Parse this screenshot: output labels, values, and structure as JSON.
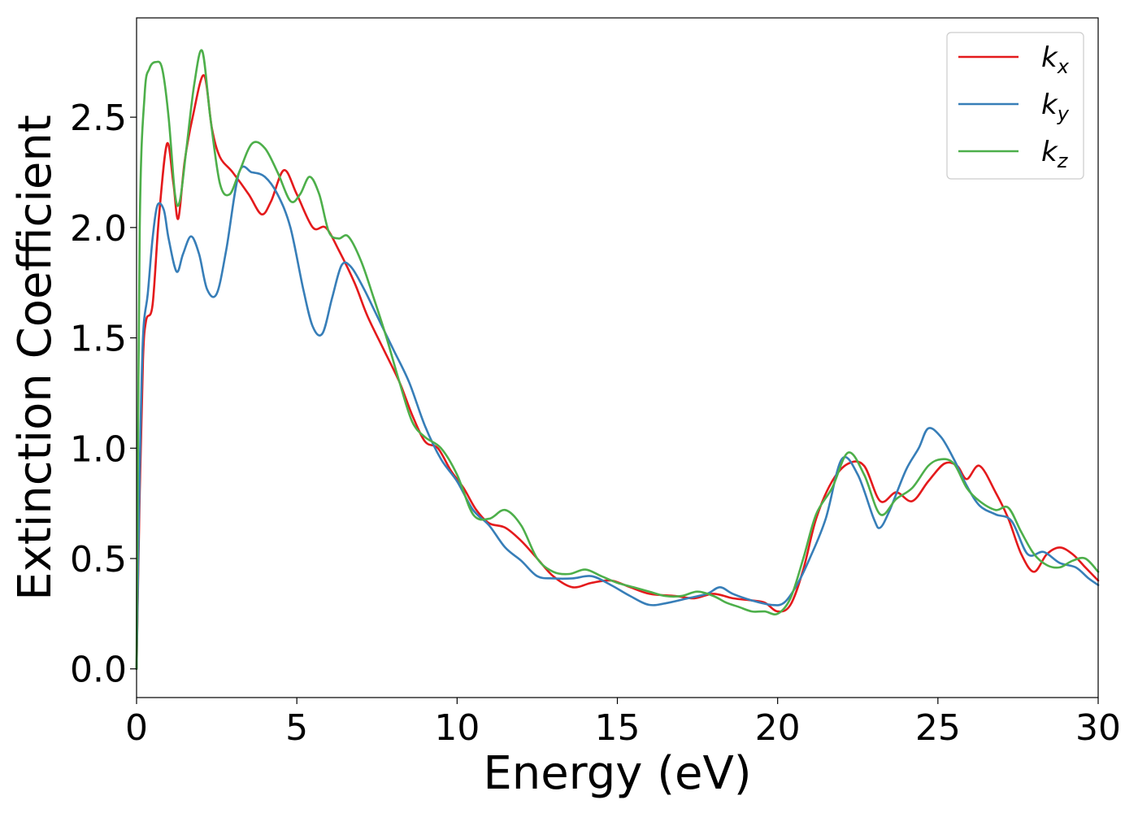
{
  "chart_data": {
    "type": "line",
    "xlabel": "Energy (eV)",
    "ylabel": "Extinction Coefficient",
    "xlim": [
      0,
      30
    ],
    "ylim": [
      -0.13,
      2.95
    ],
    "xticks": [
      0,
      5,
      10,
      15,
      20,
      25,
      30
    ],
    "xtick_labels": [
      "0",
      "5",
      "10",
      "15",
      "20",
      "25",
      "30"
    ],
    "yticks": [
      0.0,
      0.5,
      1.0,
      1.5,
      2.0,
      2.5
    ],
    "ytick_labels": [
      "0.0",
      "0.5",
      "1.0",
      "1.5",
      "2.0",
      "2.5"
    ],
    "grid": false,
    "legend_position": "top-right",
    "series": [
      {
        "name": "k_x",
        "label_main": "k",
        "label_sub": "x",
        "color": "#e41a1c",
        "x": [
          0,
          0.1,
          0.2,
          0.3,
          0.5,
          0.7,
          0.95,
          1.15,
          1.3,
          1.5,
          1.75,
          2.1,
          2.35,
          2.6,
          3.0,
          3.5,
          3.9,
          4.2,
          4.6,
          5.0,
          5.5,
          5.9,
          6.3,
          6.8,
          7.2,
          7.7,
          8.2,
          8.6,
          9.0,
          9.4,
          9.8,
          10.2,
          10.6,
          11.0,
          11.5,
          12.0,
          12.5,
          13.0,
          13.6,
          14.2,
          14.8,
          15.4,
          16.0,
          16.8,
          17.4,
          18.0,
          18.6,
          19.2,
          19.6,
          20.0,
          20.4,
          20.8,
          21.2,
          21.7,
          22.2,
          22.7,
          23.2,
          23.7,
          24.2,
          24.7,
          25.2,
          25.6,
          25.9,
          26.3,
          26.8,
          27.2,
          27.6,
          28.0,
          28.4,
          28.8,
          29.2,
          29.6,
          30.0
        ],
        "y": [
          0.0,
          0.8,
          1.4,
          1.58,
          1.65,
          2.05,
          2.38,
          2.2,
          2.04,
          2.3,
          2.5,
          2.69,
          2.45,
          2.32,
          2.25,
          2.15,
          2.06,
          2.12,
          2.26,
          2.15,
          2.0,
          2.0,
          1.9,
          1.75,
          1.6,
          1.45,
          1.3,
          1.15,
          1.03,
          1.0,
          0.9,
          0.82,
          0.72,
          0.66,
          0.64,
          0.58,
          0.5,
          0.42,
          0.37,
          0.39,
          0.4,
          0.37,
          0.34,
          0.33,
          0.32,
          0.34,
          0.32,
          0.31,
          0.3,
          0.26,
          0.29,
          0.45,
          0.68,
          0.85,
          0.93,
          0.92,
          0.76,
          0.8,
          0.76,
          0.85,
          0.93,
          0.92,
          0.86,
          0.92,
          0.8,
          0.68,
          0.52,
          0.44,
          0.52,
          0.55,
          0.52,
          0.46,
          0.4
        ]
      },
      {
        "name": "k_y",
        "label_main": "k",
        "label_sub": "y",
        "color": "#377eb8",
        "x": [
          0,
          0.1,
          0.2,
          0.35,
          0.5,
          0.65,
          0.85,
          1.0,
          1.25,
          1.45,
          1.7,
          1.95,
          2.2,
          2.5,
          2.8,
          3.2,
          3.6,
          4.0,
          4.4,
          4.8,
          5.2,
          5.5,
          5.8,
          6.1,
          6.4,
          6.7,
          7.1,
          7.5,
          8.0,
          8.5,
          9.0,
          9.5,
          10.0,
          10.5,
          11.0,
          11.5,
          12.0,
          12.5,
          13.0,
          13.6,
          14.2,
          14.8,
          15.4,
          16.0,
          16.6,
          17.2,
          17.8,
          18.2,
          18.6,
          19.2,
          19.8,
          20.2,
          20.6,
          21.0,
          21.5,
          22.0,
          22.5,
          23.0,
          23.2,
          23.5,
          24.0,
          24.4,
          24.7,
          25.1,
          25.5,
          25.9,
          26.3,
          26.8,
          27.3,
          27.8,
          28.3,
          28.8,
          29.3,
          29.7,
          30.0
        ],
        "y": [
          0.0,
          0.9,
          1.5,
          1.7,
          1.95,
          2.1,
          2.08,
          1.95,
          1.8,
          1.88,
          1.96,
          1.88,
          1.72,
          1.7,
          1.9,
          2.25,
          2.25,
          2.23,
          2.15,
          2.0,
          1.72,
          1.55,
          1.52,
          1.68,
          1.83,
          1.82,
          1.72,
          1.6,
          1.45,
          1.3,
          1.1,
          0.95,
          0.85,
          0.72,
          0.65,
          0.55,
          0.49,
          0.42,
          0.41,
          0.41,
          0.42,
          0.38,
          0.33,
          0.29,
          0.3,
          0.32,
          0.34,
          0.37,
          0.34,
          0.31,
          0.29,
          0.3,
          0.38,
          0.5,
          0.68,
          0.95,
          0.88,
          0.68,
          0.64,
          0.72,
          0.9,
          1.0,
          1.09,
          1.05,
          0.95,
          0.83,
          0.74,
          0.7,
          0.67,
          0.52,
          0.53,
          0.48,
          0.46,
          0.41,
          0.38
        ]
      },
      {
        "name": "k_z",
        "label_main": "k",
        "label_sub": "z",
        "color": "#4daf4a",
        "x": [
          0,
          0.1,
          0.25,
          0.4,
          0.6,
          0.8,
          1.0,
          1.2,
          1.35,
          1.55,
          1.8,
          2.05,
          2.3,
          2.6,
          2.9,
          3.2,
          3.6,
          4.0,
          4.4,
          4.8,
          5.1,
          5.4,
          5.7,
          6.0,
          6.3,
          6.6,
          7.0,
          7.4,
          7.8,
          8.2,
          8.6,
          9.0,
          9.5,
          10.0,
          10.5,
          11.0,
          11.5,
          12.0,
          12.5,
          13.0,
          13.5,
          14.0,
          14.5,
          15.0,
          15.5,
          16.0,
          16.5,
          17.0,
          17.5,
          18.0,
          18.4,
          18.8,
          19.2,
          19.6,
          20.0,
          20.4,
          20.8,
          21.2,
          21.7,
          22.2,
          22.7,
          23.2,
          23.7,
          24.2,
          24.7,
          25.1,
          25.5,
          25.9,
          26.3,
          26.8,
          27.2,
          27.6,
          28.0,
          28.4,
          28.8,
          29.2,
          29.6,
          30.0
        ],
        "y": [
          0.0,
          2.0,
          2.6,
          2.72,
          2.75,
          2.72,
          2.5,
          2.15,
          2.12,
          2.35,
          2.65,
          2.8,
          2.5,
          2.2,
          2.15,
          2.25,
          2.38,
          2.36,
          2.25,
          2.12,
          2.15,
          2.23,
          2.15,
          1.98,
          1.95,
          1.96,
          1.85,
          1.68,
          1.5,
          1.3,
          1.12,
          1.05,
          1.0,
          0.88,
          0.7,
          0.68,
          0.72,
          0.65,
          0.5,
          0.44,
          0.43,
          0.45,
          0.42,
          0.39,
          0.37,
          0.35,
          0.33,
          0.33,
          0.35,
          0.33,
          0.3,
          0.28,
          0.26,
          0.26,
          0.25,
          0.32,
          0.5,
          0.7,
          0.82,
          0.98,
          0.88,
          0.7,
          0.77,
          0.82,
          0.92,
          0.95,
          0.93,
          0.82,
          0.76,
          0.72,
          0.73,
          0.62,
          0.52,
          0.47,
          0.46,
          0.49,
          0.5,
          0.44
        ]
      }
    ]
  }
}
